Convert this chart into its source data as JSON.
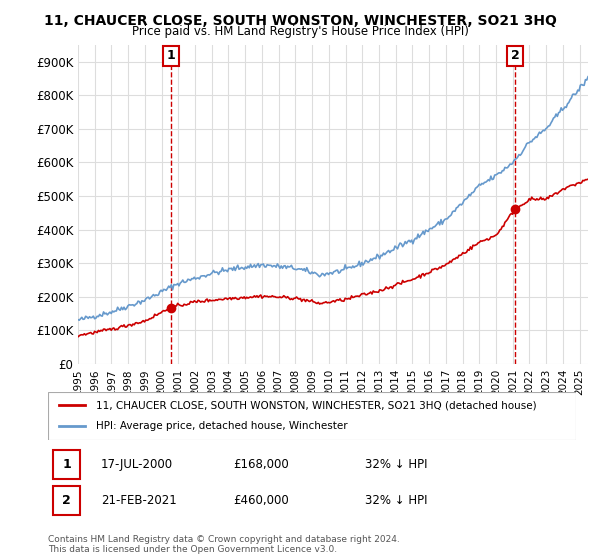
{
  "title": "11, CHAUCER CLOSE, SOUTH WONSTON, WINCHESTER, SO21 3HQ",
  "subtitle": "Price paid vs. HM Land Registry's House Price Index (HPI)",
  "ylabel_ticks": [
    "£0",
    "£100K",
    "£200K",
    "£300K",
    "£400K",
    "£500K",
    "£600K",
    "£700K",
    "£800K",
    "£900K"
  ],
  "ylim": [
    0,
    950000
  ],
  "yticks": [
    0,
    100000,
    200000,
    300000,
    400000,
    500000,
    600000,
    700000,
    800000,
    900000
  ],
  "legend_red": "11, CHAUCER CLOSE, SOUTH WONSTON, WINCHESTER, SO21 3HQ (detached house)",
  "legend_blue": "HPI: Average price, detached house, Winchester",
  "sale1_date": "17-JUL-2000",
  "sale1_price": "£168,000",
  "sale1_hpi": "32% ↓ HPI",
  "sale2_date": "21-FEB-2021",
  "sale2_price": "£460,000",
  "sale2_hpi": "32% ↓ HPI",
  "footer": "Contains HM Land Registry data © Crown copyright and database right 2024.\nThis data is licensed under the Open Government Licence v3.0.",
  "red_color": "#cc0000",
  "blue_color": "#6699cc",
  "marker1_x": 2000.54,
  "marker1_y": 168000,
  "marker2_x": 2021.13,
  "marker2_y": 460000,
  "xmin": 1995.0,
  "xmax": 2025.5
}
